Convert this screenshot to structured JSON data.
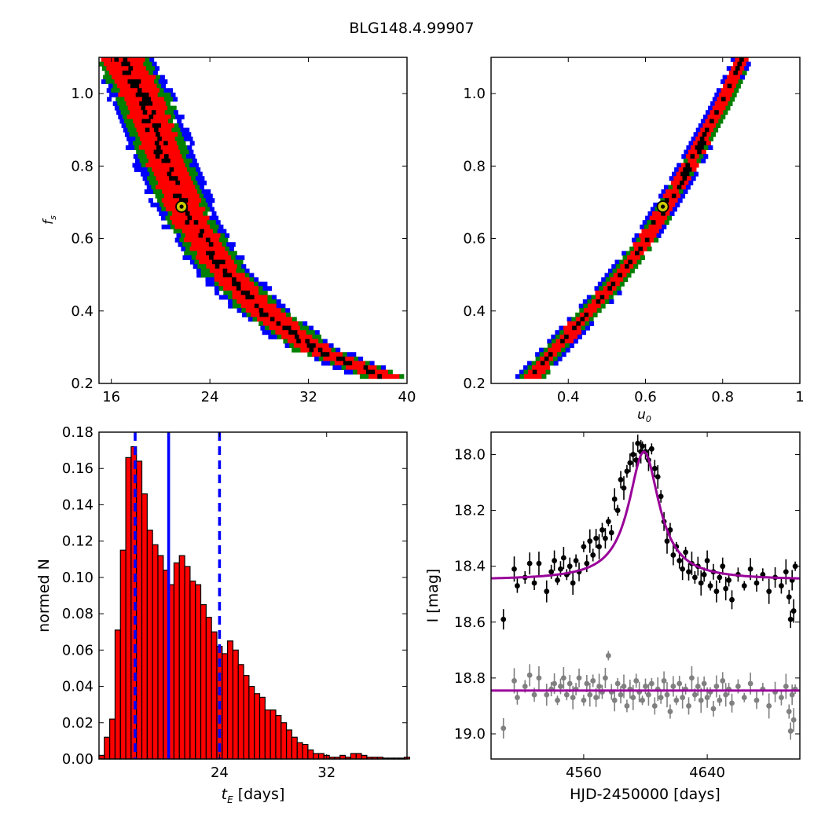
{
  "figure": {
    "title": "BLG148.4.99907"
  },
  "chart_data": [
    {
      "type": "heatmap",
      "name": "fs-vs-tE",
      "xlim": [
        15,
        40
      ],
      "ylim": [
        0.2,
        1.1
      ],
      "xticks": [
        16,
        24,
        32,
        40
      ],
      "yticks": [
        0.2,
        0.4,
        0.6,
        0.8,
        1.0
      ],
      "xlabel": "",
      "ylabel": "f_s",
      "colors": {
        "outer": "#0000ff",
        "middle": "#008000",
        "inner": "#ff0000",
        "core": "#000000",
        "marker_fill": "#cccc00"
      },
      "ridge": [
        [
          16.8,
          1.1
        ],
        [
          18.5,
          1.0
        ],
        [
          20.6,
          0.8
        ],
        [
          22.5,
          0.65
        ],
        [
          25,
          0.52
        ],
        [
          28.5,
          0.4
        ],
        [
          32.5,
          0.3
        ],
        [
          38.5,
          0.22
        ]
      ],
      "best_fit": {
        "x": 21.7,
        "y": 0.688
      }
    },
    {
      "type": "heatmap",
      "name": "fs-vs-u0",
      "xlim": [
        0.2,
        1.0
      ],
      "ylim": [
        0.2,
        1.1
      ],
      "xticks": [
        0.4,
        0.6,
        0.8,
        1.0
      ],
      "yticks": [
        0.2,
        0.4,
        0.6,
        0.8,
        1.0
      ],
      "xlabel": "u_0",
      "ylabel": "",
      "colors": {
        "outer": "#0000ff",
        "middle": "#008000",
        "inner": "#ff0000",
        "core": "#000000",
        "marker_fill": "#cccc00"
      },
      "ridge": [
        [
          0.3,
          0.22
        ],
        [
          0.4,
          0.34
        ],
        [
          0.5,
          0.46
        ],
        [
          0.6,
          0.6
        ],
        [
          0.7,
          0.78
        ],
        [
          0.8,
          0.98
        ],
        [
          0.85,
          1.1
        ]
      ],
      "best_fit": {
        "x": 0.645,
        "y": 0.688
      }
    },
    {
      "type": "bar",
      "name": "tE-histogram",
      "bin_width": 0.4,
      "x": [
        15.2,
        15.6,
        16.0,
        16.4,
        16.8,
        17.2,
        17.6,
        18.0,
        18.4,
        18.8,
        19.2,
        19.6,
        20.0,
        20.4,
        20.8,
        21.2,
        21.6,
        22.0,
        22.4,
        22.8,
        23.2,
        23.6,
        24.0,
        24.4,
        24.8,
        25.2,
        25.6,
        26.0,
        26.4,
        26.8,
        27.2,
        27.6,
        28.0,
        28.4,
        28.8,
        29.2,
        29.6,
        30.0,
        30.4,
        30.8,
        31.2,
        31.6,
        32.0,
        32.4,
        32.8,
        33.2,
        33.6,
        34.0,
        34.4,
        34.8,
        35.2,
        35.6,
        36.0,
        36.4,
        36.8,
        37.2,
        37.6,
        38.0
      ],
      "values": [
        0.002,
        0.012,
        0.022,
        0.071,
        0.115,
        0.166,
        0.172,
        0.164,
        0.146,
        0.126,
        0.118,
        0.112,
        0.104,
        0.096,
        0.108,
        0.112,
        0.106,
        0.098,
        0.096,
        0.085,
        0.078,
        0.07,
        0.062,
        0.058,
        0.065,
        0.06,
        0.052,
        0.046,
        0.04,
        0.036,
        0.034,
        0.027,
        0.027,
        0.024,
        0.02,
        0.016,
        0.012,
        0.009,
        0.008,
        0.005,
        0.003,
        0.003,
        0.002,
        0.001,
        0.001,
        0.002,
        0.001,
        0.003,
        0.003,
        0.002,
        0.001,
        0.001,
        0.001,
        0.0005,
        0.0005,
        0.0005,
        0.0005,
        0.001
      ],
      "xlim": [
        15,
        38
      ],
      "ylim": [
        0,
        0.18
      ],
      "xticks": [
        24,
        32
      ],
      "yticks": [
        0.0,
        0.02,
        0.04,
        0.06,
        0.08,
        0.1,
        0.12,
        0.14,
        0.16,
        0.18
      ],
      "ytick_labels": [
        "0.00",
        "0.02",
        "0.04",
        "0.06",
        "0.08",
        "0.10",
        "0.12",
        "0.14",
        "0.16",
        "0.18"
      ],
      "xlabel": "t_E",
      "xlabel_suffix": " [days]",
      "ylabel": "normed N",
      "bar_color": "#ff0000",
      "vlines": [
        {
          "x": 17.7,
          "style": "dashed",
          "color": "#0000ff"
        },
        {
          "x": 20.2,
          "style": "solid",
          "color": "#0000ff"
        },
        {
          "x": 24.0,
          "style": "dashed",
          "color": "#0000ff"
        }
      ]
    },
    {
      "type": "scatter",
      "name": "light-curve",
      "xlim": [
        4500,
        4700
      ],
      "ylim": [
        19.09,
        17.92
      ],
      "xticks": [
        4560,
        4640
      ],
      "yticks": [
        18.0,
        18.2,
        18.4,
        18.6,
        18.8,
        19.0
      ],
      "ytick_labels": [
        "18.0",
        "18.2",
        "18.4",
        "18.6",
        "18.8",
        "19.0"
      ],
      "xlabel": "HJD-2450000 [days]",
      "ylabel": "I [mag]",
      "model": {
        "t0": 4599,
        "baseline": 18.45,
        "peak": 17.99,
        "width": 12
      },
      "residual_baseline": 18.845,
      "colors": {
        "data": "#000000",
        "residuals": "#808080",
        "model": "#990099"
      },
      "data": [
        [
          4508,
          18.59
        ],
        [
          4515,
          18.41
        ],
        [
          4517,
          18.47
        ],
        [
          4522,
          18.44
        ],
        [
          4525,
          18.39
        ],
        [
          4528,
          18.46
        ],
        [
          4531,
          18.39
        ],
        [
          4536,
          18.49
        ],
        [
          4539,
          18.42
        ],
        [
          4541,
          18.38
        ],
        [
          4543,
          18.45
        ],
        [
          4545,
          18.41
        ],
        [
          4547,
          18.37
        ],
        [
          4549,
          18.43
        ],
        [
          4551,
          18.4
        ],
        [
          4553,
          18.46
        ],
        [
          4555,
          18.38
        ],
        [
          4557,
          18.42
        ],
        [
          4560,
          18.33
        ],
        [
          4562,
          18.39
        ],
        [
          4564,
          18.31
        ],
        [
          4566,
          18.36
        ],
        [
          4568,
          18.3
        ],
        [
          4570,
          18.33
        ],
        [
          4572,
          18.27
        ],
        [
          4574,
          18.3
        ],
        [
          4576,
          18.24
        ],
        [
          4578,
          18.28
        ],
        [
          4580,
          18.16
        ],
        [
          4582,
          18.2
        ],
        [
          4584,
          18.09
        ],
        [
          4586,
          18.12
        ],
        [
          4588,
          18.06
        ],
        [
          4590,
          18.03
        ],
        [
          4592,
          18.0
        ],
        [
          4594,
          18.02
        ],
        [
          4595,
          17.96
        ],
        [
          4597,
          17.99
        ],
        [
          4598,
          17.97
        ],
        [
          4600,
          17.99
        ],
        [
          4602,
          18.02
        ],
        [
          4604,
          17.98
        ],
        [
          4606,
          18.05
        ],
        [
          4608,
          18.08
        ],
        [
          4610,
          18.15
        ],
        [
          4612,
          18.24
        ],
        [
          4614,
          18.31
        ],
        [
          4616,
          18.27
        ],
        [
          4618,
          18.36
        ],
        [
          4620,
          18.33
        ],
        [
          4622,
          18.38
        ],
        [
          4624,
          18.41
        ],
        [
          4626,
          18.35
        ],
        [
          4628,
          18.42
        ],
        [
          4630,
          18.39
        ],
        [
          4632,
          18.44
        ],
        [
          4634,
          18.4
        ],
        [
          4636,
          18.46
        ],
        [
          4638,
          18.43
        ],
        [
          4640,
          18.38
        ],
        [
          4642,
          18.47
        ],
        [
          4644,
          18.42
        ],
        [
          4646,
          18.49
        ],
        [
          4648,
          18.44
        ],
        [
          4650,
          18.4
        ],
        [
          4652,
          18.48
        ],
        [
          4654,
          18.45
        ],
        [
          4656,
          18.52
        ],
        [
          4660,
          18.43
        ],
        [
          4664,
          18.47
        ],
        [
          4668,
          18.41
        ],
        [
          4672,
          18.46
        ],
        [
          4676,
          18.43
        ],
        [
          4680,
          18.49
        ],
        [
          4684,
          18.44
        ],
        [
          4688,
          18.47
        ],
        [
          4691,
          18.42
        ],
        [
          4693,
          18.51
        ],
        [
          4694,
          18.59
        ],
        [
          4695,
          18.45
        ],
        [
          4696,
          18.56
        ],
        [
          4697,
          18.4
        ]
      ],
      "residuals": [
        [
          4508,
          18.98
        ],
        [
          4515,
          18.81
        ],
        [
          4517,
          18.87
        ],
        [
          4522,
          18.83
        ],
        [
          4525,
          18.79
        ],
        [
          4528,
          18.86
        ],
        [
          4531,
          18.8
        ],
        [
          4536,
          18.86
        ],
        [
          4539,
          18.84
        ],
        [
          4541,
          18.82
        ],
        [
          4543,
          18.88
        ],
        [
          4545,
          18.83
        ],
        [
          4547,
          18.8
        ],
        [
          4549,
          18.86
        ],
        [
          4551,
          18.82
        ],
        [
          4553,
          18.87
        ],
        [
          4555,
          18.84
        ],
        [
          4557,
          18.8
        ],
        [
          4560,
          18.88
        ],
        [
          4562,
          18.82
        ],
        [
          4564,
          18.86
        ],
        [
          4566,
          18.81
        ],
        [
          4568,
          18.87
        ],
        [
          4570,
          18.83
        ],
        [
          4572,
          18.85
        ],
        [
          4574,
          18.8
        ],
        [
          4576,
          18.72
        ],
        [
          4578,
          18.85
        ],
        [
          4580,
          18.88
        ],
        [
          4582,
          18.82
        ],
        [
          4584,
          18.86
        ],
        [
          4586,
          18.83
        ],
        [
          4588,
          18.9
        ],
        [
          4590,
          18.84
        ],
        [
          4592,
          18.87
        ],
        [
          4594,
          18.81
        ],
        [
          4596,
          18.85
        ],
        [
          4598,
          18.88
        ],
        [
          4600,
          18.83
        ],
        [
          4602,
          18.86
        ],
        [
          4604,
          18.82
        ],
        [
          4606,
          18.9
        ],
        [
          4608,
          18.84
        ],
        [
          4610,
          18.87
        ],
        [
          4612,
          18.81
        ],
        [
          4614,
          18.86
        ],
        [
          4616,
          18.92
        ],
        [
          4618,
          18.83
        ],
        [
          4620,
          18.88
        ],
        [
          4622,
          18.82
        ],
        [
          4624,
          18.87
        ],
        [
          4626,
          18.84
        ],
        [
          4628,
          18.9
        ],
        [
          4630,
          18.8
        ],
        [
          4632,
          18.86
        ],
        [
          4634,
          18.83
        ],
        [
          4636,
          18.88
        ],
        [
          4638,
          18.82
        ],
        [
          4640,
          18.87
        ],
        [
          4642,
          18.85
        ],
        [
          4644,
          18.91
        ],
        [
          4646,
          18.83
        ],
        [
          4648,
          18.88
        ],
        [
          4650,
          18.81
        ],
        [
          4652,
          18.86
        ],
        [
          4654,
          18.84
        ],
        [
          4656,
          18.89
        ],
        [
          4660,
          18.83
        ],
        [
          4664,
          18.87
        ],
        [
          4668,
          18.82
        ],
        [
          4672,
          18.88
        ],
        [
          4676,
          18.84
        ],
        [
          4680,
          18.9
        ],
        [
          4684,
          18.85
        ],
        [
          4688,
          18.87
        ],
        [
          4691,
          18.83
        ],
        [
          4693,
          18.92
        ],
        [
          4694,
          18.99
        ],
        [
          4695,
          18.86
        ],
        [
          4696,
          18.95
        ],
        [
          4697,
          18.84
        ]
      ]
    }
  ]
}
